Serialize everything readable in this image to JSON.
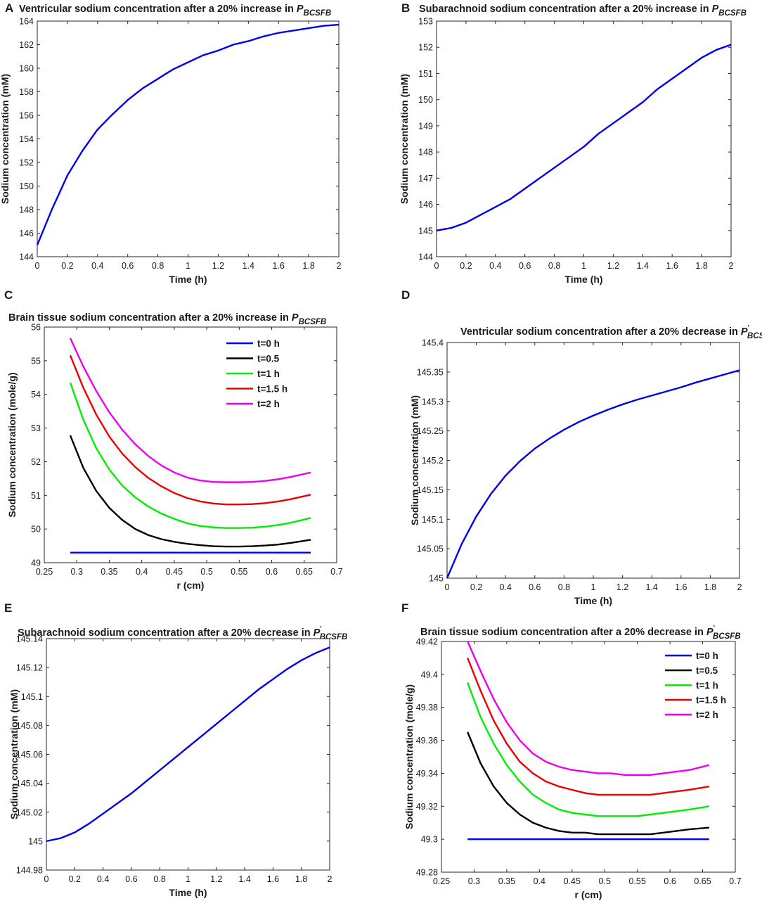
{
  "figure": {
    "panels": [
      {
        "id": "A",
        "title_prefix": "Ventricular sodium concentration after a 20% increase in ",
        "title_symbol": "P",
        "title_sub": "BCSFB",
        "title_prime": ""
      },
      {
        "id": "B",
        "title_prefix": "Subarachnoid sodium concentration after a 20% increase in ",
        "title_symbol": "P",
        "title_sub": "BCSFB",
        "title_prime": ""
      },
      {
        "id": "C",
        "title_prefix": "Brain tissue sodium concentration after a 20% increase in ",
        "title_symbol": "P",
        "title_sub": "BCSFB",
        "title_prime": ""
      },
      {
        "id": "D",
        "title_prefix": "Ventricular sodium concentration after a 20% decrease in ",
        "title_symbol": "P",
        "title_sub": "BCSFB",
        "title_prime": "'"
      },
      {
        "id": "E",
        "title_prefix": "Subarachnoid sodium concentration after a 20% decrease in ",
        "title_symbol": "P",
        "title_sub": "BCSFB",
        "title_prime": "'"
      },
      {
        "id": "F",
        "title_prefix": "Brain tissue sodium concentration after a 20% decrease in ",
        "title_symbol": "P",
        "title_sub": "BCSFB",
        "title_prime": "'"
      }
    ]
  },
  "chart_data": [
    {
      "panel": "A",
      "type": "line",
      "xlabel": "Time (h)",
      "ylabel": "Sodium concentration (mM)",
      "xlim": [
        0,
        2
      ],
      "ylim": [
        144,
        164
      ],
      "xticks": [
        0,
        0.2,
        0.4,
        0.6,
        0.8,
        1,
        1.2,
        1.4,
        1.6,
        1.8,
        2
      ],
      "xtick_labels": [
        "0",
        "0.2",
        "0.4",
        "0.6",
        "0.8",
        "1",
        "1.2",
        "1.4",
        "1.6",
        "1.8",
        "2"
      ],
      "yticks": [
        144,
        146,
        148,
        150,
        152,
        154,
        156,
        158,
        160,
        162,
        164
      ],
      "ytick_labels": [
        "144",
        "146",
        "148",
        "150",
        "152",
        "154",
        "156",
        "158",
        "160",
        "162",
        "164"
      ],
      "legend": [],
      "series": [
        {
          "name": "ventricular",
          "color": "#0000ee",
          "x": [
            0,
            0.1,
            0.2,
            0.3,
            0.4,
            0.5,
            0.6,
            0.7,
            0.8,
            0.9,
            1.0,
            1.1,
            1.2,
            1.3,
            1.4,
            1.5,
            1.6,
            1.7,
            1.8,
            1.9,
            2.0
          ],
          "y": [
            145.0,
            148.1,
            150.9,
            153.0,
            154.8,
            156.1,
            157.3,
            158.3,
            159.1,
            159.9,
            160.5,
            161.1,
            161.5,
            162.0,
            162.3,
            162.7,
            163.0,
            163.2,
            163.4,
            163.6,
            163.7
          ]
        }
      ]
    },
    {
      "panel": "B",
      "type": "line",
      "xlabel": "Time (h)",
      "ylabel": "Sodium concentration (mM)",
      "xlim": [
        0,
        2
      ],
      "ylim": [
        144,
        153
      ],
      "xticks": [
        0,
        0.2,
        0.4,
        0.6,
        0.8,
        1,
        1.2,
        1.4,
        1.6,
        1.8,
        2
      ],
      "xtick_labels": [
        "0",
        "0.2",
        "0.4",
        "0.6",
        "0.8",
        "1",
        "1.2",
        "1.4",
        "1.6",
        "1.8",
        "2"
      ],
      "yticks": [
        144,
        145,
        146,
        147,
        148,
        149,
        150,
        151,
        152,
        153
      ],
      "ytick_labels": [
        "144",
        "145",
        "146",
        "147",
        "148",
        "149",
        "150",
        "151",
        "152",
        "153"
      ],
      "legend": [],
      "series": [
        {
          "name": "subarachnoid",
          "color": "#0000ee",
          "x": [
            0,
            0.1,
            0.2,
            0.3,
            0.4,
            0.5,
            0.6,
            0.7,
            0.8,
            0.9,
            1.0,
            1.1,
            1.2,
            1.3,
            1.4,
            1.5,
            1.6,
            1.7,
            1.8,
            1.9,
            2.0
          ],
          "y": [
            145.0,
            145.1,
            145.3,
            145.6,
            145.9,
            146.2,
            146.6,
            147.0,
            147.4,
            147.8,
            148.2,
            148.7,
            149.1,
            149.5,
            149.9,
            150.4,
            150.8,
            151.2,
            151.6,
            151.9,
            152.1
          ]
        }
      ]
    },
    {
      "panel": "C",
      "type": "line",
      "xlabel": "r (cm)",
      "ylabel": "Sodium concentration (mole/g)",
      "xlim": [
        0.25,
        0.7
      ],
      "ylim": [
        49,
        56
      ],
      "xticks": [
        0.25,
        0.3,
        0.35,
        0.4,
        0.45,
        0.5,
        0.55,
        0.6,
        0.65,
        0.7
      ],
      "xtick_labels": [
        "0.25",
        "0.3",
        "0.35",
        "0.4",
        "0.45",
        "0.5",
        "0.55",
        "0.6",
        "0.65",
        "0.7"
      ],
      "yticks": [
        49,
        50,
        51,
        52,
        53,
        54,
        55,
        56
      ],
      "ytick_labels": [
        "49",
        "50",
        "51",
        "52",
        "53",
        "54",
        "55",
        "56"
      ],
      "legend": [
        "t=0 h",
        "t=0.5",
        "t=1 h",
        "t=1.5 h",
        "t=2 h"
      ],
      "series": [
        {
          "name": "t=0 h",
          "color": "#0000ee",
          "x": [
            0.29,
            0.31,
            0.33,
            0.35,
            0.37,
            0.39,
            0.41,
            0.43,
            0.45,
            0.47,
            0.49,
            0.51,
            0.53,
            0.55,
            0.57,
            0.59,
            0.61,
            0.63,
            0.66
          ],
          "y": [
            49.3,
            49.3,
            49.3,
            49.3,
            49.3,
            49.3,
            49.3,
            49.3,
            49.3,
            49.3,
            49.3,
            49.3,
            49.3,
            49.3,
            49.3,
            49.3,
            49.3,
            49.3,
            49.3
          ]
        },
        {
          "name": "t=0.5",
          "color": "#000000",
          "x": [
            0.29,
            0.31,
            0.33,
            0.35,
            0.37,
            0.39,
            0.41,
            0.43,
            0.45,
            0.47,
            0.49,
            0.51,
            0.53,
            0.55,
            0.57,
            0.59,
            0.61,
            0.63,
            0.66
          ],
          "y": [
            52.78,
            51.82,
            51.13,
            50.63,
            50.27,
            50.0,
            49.82,
            49.7,
            49.62,
            49.56,
            49.52,
            49.49,
            49.48,
            49.48,
            49.49,
            49.51,
            49.54,
            49.59,
            49.68
          ]
        },
        {
          "name": "t=1 h",
          "color": "#00ee00",
          "x": [
            0.29,
            0.31,
            0.33,
            0.35,
            0.37,
            0.39,
            0.41,
            0.43,
            0.45,
            0.47,
            0.49,
            0.51,
            0.53,
            0.55,
            0.57,
            0.59,
            0.61,
            0.63,
            0.66
          ],
          "y": [
            54.35,
            53.25,
            52.4,
            51.77,
            51.29,
            50.94,
            50.67,
            50.46,
            50.3,
            50.17,
            50.09,
            50.05,
            50.03,
            50.03,
            50.04,
            50.07,
            50.12,
            50.19,
            50.33
          ]
        },
        {
          "name": "t=1.5 h",
          "color": "#ee0000",
          "x": [
            0.29,
            0.31,
            0.33,
            0.35,
            0.37,
            0.39,
            0.41,
            0.43,
            0.45,
            0.47,
            0.49,
            0.51,
            0.53,
            0.55,
            0.57,
            0.59,
            0.61,
            0.63,
            0.66
          ],
          "y": [
            55.16,
            54.2,
            53.4,
            52.75,
            52.24,
            51.84,
            51.52,
            51.27,
            51.07,
            50.92,
            50.82,
            50.76,
            50.73,
            50.73,
            50.74,
            50.77,
            50.82,
            50.89,
            51.02
          ]
        },
        {
          "name": "t=2 h",
          "color": "#ee00ee",
          "x": [
            0.29,
            0.31,
            0.33,
            0.35,
            0.37,
            0.39,
            0.41,
            0.43,
            0.45,
            0.47,
            0.49,
            0.51,
            0.53,
            0.55,
            0.57,
            0.59,
            0.61,
            0.63,
            0.66
          ],
          "y": [
            55.67,
            54.83,
            54.1,
            53.47,
            52.95,
            52.52,
            52.17,
            51.89,
            51.68,
            51.53,
            51.44,
            51.4,
            51.39,
            51.39,
            51.4,
            51.43,
            51.48,
            51.55,
            51.68
          ]
        }
      ]
    },
    {
      "panel": "D",
      "type": "line",
      "xlabel": "Time (h)",
      "ylabel": "Sodium concentration (mM)",
      "xlim": [
        0,
        2
      ],
      "ylim": [
        145,
        145.4
      ],
      "xticks": [
        0,
        0.2,
        0.4,
        0.6,
        0.8,
        1,
        1.2,
        1.4,
        1.6,
        1.8,
        2
      ],
      "xtick_labels": [
        "0",
        "0.2",
        "0.4",
        "0.6",
        "0.8",
        "1",
        "1.2",
        "1.4",
        "1.6",
        "1.8",
        "2"
      ],
      "yticks": [
        145,
        145.05,
        145.1,
        145.15,
        145.2,
        145.25,
        145.3,
        145.35,
        145.4
      ],
      "ytick_labels": [
        "145",
        "145.05",
        "145.1",
        "145.15",
        "145.2",
        "145.25",
        "145.3",
        "145.35",
        "145.4"
      ],
      "legend": [],
      "series": [
        {
          "name": "ventricular",
          "color": "#0000ee",
          "x": [
            0,
            0.1,
            0.2,
            0.3,
            0.4,
            0.5,
            0.6,
            0.7,
            0.8,
            0.9,
            1.0,
            1.1,
            1.2,
            1.3,
            1.4,
            1.5,
            1.6,
            1.7,
            1.8,
            1.9,
            2.0
          ],
          "y": [
            145.0,
            145.058,
            145.105,
            145.143,
            145.174,
            145.199,
            145.22,
            145.237,
            145.252,
            145.265,
            145.276,
            145.286,
            145.295,
            145.303,
            145.31,
            145.317,
            145.324,
            145.332,
            145.339,
            145.346,
            145.353
          ]
        }
      ]
    },
    {
      "panel": "E",
      "type": "line",
      "xlabel": "Time (h)",
      "ylabel": "Sodium concentration (mM)",
      "xlim": [
        0,
        2
      ],
      "ylim": [
        144.98,
        145.14
      ],
      "xticks": [
        0,
        0.2,
        0.4,
        0.6,
        0.8,
        1,
        1.2,
        1.4,
        1.6,
        1.8,
        2
      ],
      "xtick_labels": [
        "0",
        "0.2",
        "0.4",
        "0.6",
        "0.8",
        "1",
        "1.2",
        "1.4",
        "1.6",
        "1.8",
        "2"
      ],
      "yticks": [
        144.98,
        145,
        145.02,
        145.04,
        145.06,
        145.08,
        145.1,
        145.12,
        145.14
      ],
      "ytick_labels": [
        "144.98",
        "145",
        "145.02",
        "145.04",
        "145.06",
        "145.08",
        "145.1",
        "145.12",
        "145.14"
      ],
      "legend": [],
      "series": [
        {
          "name": "subarachnoid",
          "color": "#0000ee",
          "x": [
            0,
            0.1,
            0.2,
            0.3,
            0.4,
            0.5,
            0.6,
            0.7,
            0.8,
            0.9,
            1.0,
            1.1,
            1.2,
            1.3,
            1.4,
            1.5,
            1.6,
            1.7,
            1.8,
            1.9,
            2.0
          ],
          "y": [
            145.0,
            145.002,
            145.006,
            145.012,
            145.019,
            145.026,
            145.033,
            145.041,
            145.049,
            145.057,
            145.065,
            145.073,
            145.081,
            145.089,
            145.097,
            145.105,
            145.112,
            145.119,
            145.125,
            145.13,
            145.134
          ]
        }
      ]
    },
    {
      "panel": "F",
      "type": "line",
      "xlabel": "r (cm)",
      "ylabel": "Sodium concentration (mole/g)",
      "xlim": [
        0.25,
        0.7
      ],
      "ylim": [
        49.28,
        49.42
      ],
      "xticks": [
        0.25,
        0.3,
        0.35,
        0.4,
        0.45,
        0.5,
        0.55,
        0.6,
        0.65,
        0.7
      ],
      "xtick_labels": [
        "0.25",
        "0.3",
        "0.35",
        "0.4",
        "0.45",
        "0.5",
        "0.55",
        "0.6",
        "0.65",
        "0.7"
      ],
      "yticks": [
        49.28,
        49.3,
        49.32,
        49.34,
        49.36,
        49.38,
        49.4,
        49.42
      ],
      "ytick_labels": [
        "49.28",
        "49.3",
        "49.32",
        "49.34",
        "49.36",
        "49.38",
        "49.4",
        "49.42"
      ],
      "legend": [
        "t=0 h",
        "t=0.5",
        "t=1 h",
        "t=1.5 h",
        "t=2 h"
      ],
      "series": [
        {
          "name": "t=0 h",
          "color": "#0000ee",
          "x": [
            0.29,
            0.31,
            0.33,
            0.35,
            0.37,
            0.39,
            0.41,
            0.43,
            0.45,
            0.47,
            0.49,
            0.51,
            0.53,
            0.55,
            0.57,
            0.59,
            0.61,
            0.63,
            0.66
          ],
          "y": [
            49.3,
            49.3,
            49.3,
            49.3,
            49.3,
            49.3,
            49.3,
            49.3,
            49.3,
            49.3,
            49.3,
            49.3,
            49.3,
            49.3,
            49.3,
            49.3,
            49.3,
            49.3,
            49.3
          ]
        },
        {
          "name": "t=0.5",
          "color": "#000000",
          "x": [
            0.29,
            0.31,
            0.33,
            0.35,
            0.37,
            0.39,
            0.41,
            0.43,
            0.45,
            0.47,
            0.49,
            0.51,
            0.53,
            0.55,
            0.57,
            0.59,
            0.61,
            0.63,
            0.66
          ],
          "y": [
            49.365,
            49.346,
            49.332,
            49.322,
            49.315,
            49.31,
            49.307,
            49.305,
            49.304,
            49.304,
            49.303,
            49.303,
            49.303,
            49.303,
            49.303,
            49.304,
            49.305,
            49.306,
            49.307
          ]
        },
        {
          "name": "t=1 h",
          "color": "#00ee00",
          "x": [
            0.29,
            0.31,
            0.33,
            0.35,
            0.37,
            0.39,
            0.41,
            0.43,
            0.45,
            0.47,
            0.49,
            0.51,
            0.53,
            0.55,
            0.57,
            0.59,
            0.61,
            0.63,
            0.66
          ],
          "y": [
            49.395,
            49.374,
            49.358,
            49.345,
            49.335,
            49.327,
            49.322,
            49.318,
            49.316,
            49.315,
            49.314,
            49.314,
            49.314,
            49.314,
            49.315,
            49.316,
            49.317,
            49.318,
            49.32
          ]
        },
        {
          "name": "t=1.5 h",
          "color": "#ee0000",
          "x": [
            0.29,
            0.31,
            0.33,
            0.35,
            0.37,
            0.39,
            0.41,
            0.43,
            0.45,
            0.47,
            0.49,
            0.51,
            0.53,
            0.55,
            0.57,
            0.59,
            0.61,
            0.63,
            0.66
          ],
          "y": [
            49.41,
            49.39,
            49.372,
            49.358,
            49.347,
            49.34,
            49.335,
            49.332,
            49.33,
            49.328,
            49.327,
            49.327,
            49.327,
            49.327,
            49.327,
            49.328,
            49.329,
            49.33,
            49.332
          ]
        },
        {
          "name": "t=2 h",
          "color": "#ee00ee",
          "x": [
            0.29,
            0.31,
            0.33,
            0.35,
            0.37,
            0.39,
            0.41,
            0.43,
            0.45,
            0.47,
            0.49,
            0.51,
            0.53,
            0.55,
            0.57,
            0.59,
            0.61,
            0.63,
            0.66
          ],
          "y": [
            49.42,
            49.402,
            49.385,
            49.371,
            49.36,
            49.352,
            49.347,
            49.344,
            49.342,
            49.341,
            49.34,
            49.34,
            49.339,
            49.339,
            49.339,
            49.34,
            49.341,
            49.342,
            49.345
          ]
        }
      ]
    }
  ]
}
